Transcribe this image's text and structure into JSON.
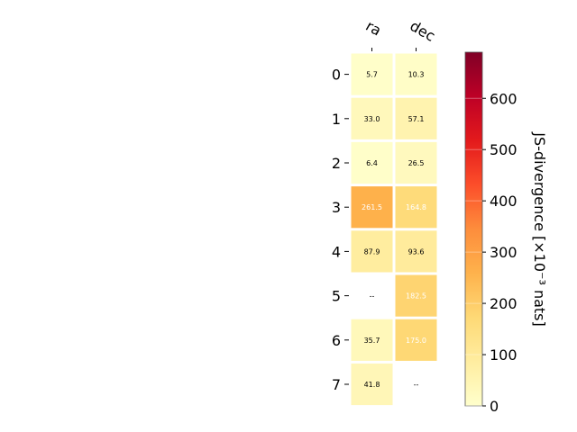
{
  "chart_data": {
    "type": "heatmap",
    "columns": [
      "ra",
      "dec"
    ],
    "rows": [
      "0",
      "1",
      "2",
      "3",
      "4",
      "5",
      "6",
      "7"
    ],
    "values": [
      [
        5.7,
        10.3
      ],
      [
        33.0,
        57.1
      ],
      [
        6.4,
        26.5
      ],
      [
        261.5,
        164.8
      ],
      [
        87.9,
        93.6
      ],
      [
        null,
        182.5
      ],
      [
        35.7,
        175.0
      ],
      [
        41.8,
        null
      ]
    ],
    "cell_labels": [
      [
        "5.7",
        "10.3"
      ],
      [
        "33.0",
        "57.1"
      ],
      [
        "6.4",
        "26.5"
      ],
      [
        "261.5",
        "164.8"
      ],
      [
        "87.9",
        "93.6"
      ],
      [
        "--",
        "182.5"
      ],
      [
        "35.7",
        "175.0"
      ],
      [
        "41.8",
        "--"
      ]
    ],
    "colorbar": {
      "label": "JS-divergence [×10⁻³ nats]",
      "ticks": [
        "0",
        "100",
        "200",
        "300",
        "400",
        "500",
        "600"
      ],
      "range": [
        0,
        690
      ],
      "colormap": "YlOrRd",
      "colors": [
        "#ffffcc",
        "#ffeda0",
        "#fed976",
        "#feb24c",
        "#fd8d3c",
        "#fc4e2a",
        "#e31a1c",
        "#bd0026",
        "#800026"
      ]
    }
  }
}
